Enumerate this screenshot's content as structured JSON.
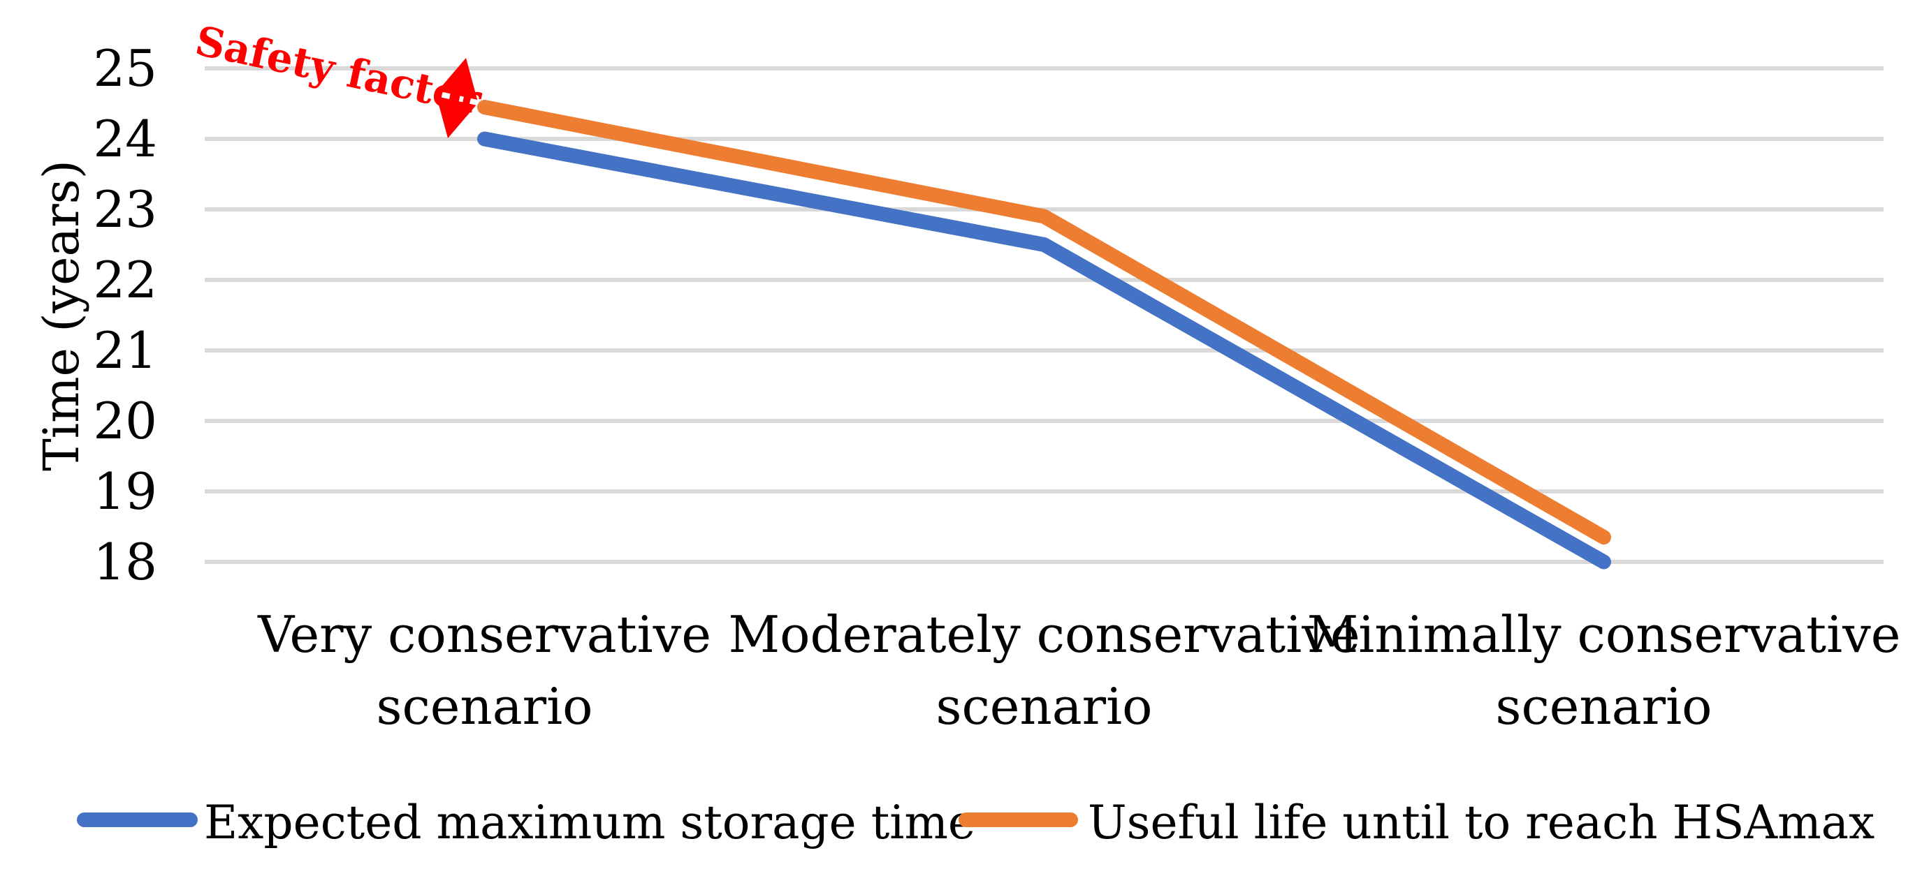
{
  "chart_data": {
    "type": "line",
    "title": "",
    "categories": [
      [
        "Very conservative",
        "scenario"
      ],
      [
        "Moderately conservative",
        "scenario"
      ],
      [
        "Minimally conservative",
        "scenario"
      ]
    ],
    "series": [
      {
        "name": "Expected maximum storage time",
        "color": "#4472C4",
        "values": [
          24,
          22.5,
          18
        ]
      },
      {
        "name": "Useful life until to reach HSAmax",
        "color": "#ED7D31",
        "values": [
          24.45,
          22.9,
          18.35
        ]
      }
    ],
    "xlabel": "",
    "ylabel": "Time (years)",
    "ylim": [
      18,
      25
    ],
    "yticks": [
      18,
      19,
      20,
      21,
      22,
      23,
      24,
      25
    ],
    "grid": "horizontal",
    "gridline_color": "#D9D9D9",
    "legend_position": "bottom",
    "annotation": {
      "text": "Safety factor",
      "color": "#FF0000"
    }
  }
}
